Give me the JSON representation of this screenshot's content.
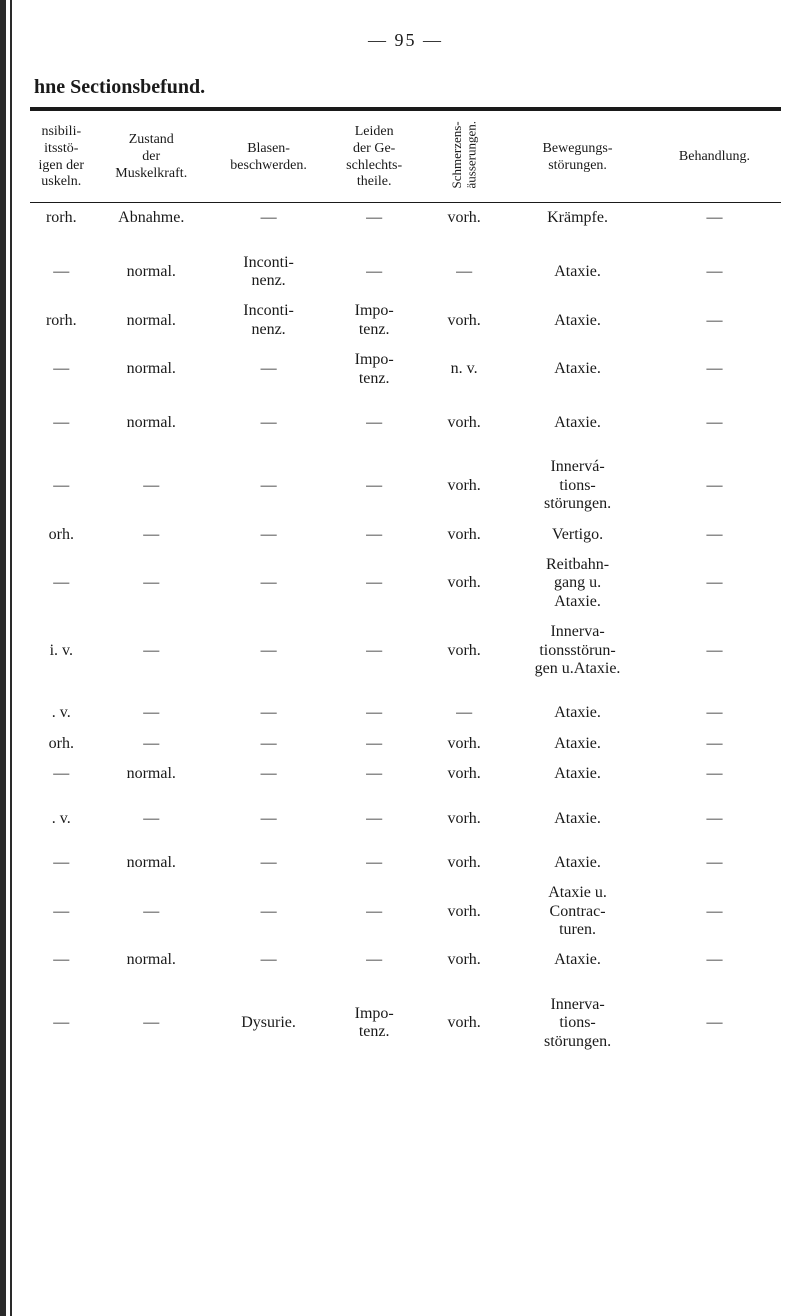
{
  "page_number": "— 95 —",
  "section_title": "hne Sectionsbefund.",
  "headers": {
    "col1": "nsibili-\nitsstö-\nigen der\nuskeln.",
    "col2": "Zustand\nder\nMuskelkraft.",
    "col3": "Blasen-\nbeschwerden.",
    "col4": "Leiden\nder Ge-\nschlechts-\ntheile.",
    "col5": "Schmerzens-\näusserungen.",
    "col6": "Bewegungs-\nstörungen.",
    "col7": "Behandlung."
  },
  "rows": [
    {
      "c1": "rorh.",
      "c2": "Abnahme.",
      "c3": "—",
      "c4": "—",
      "c5": "vorh.",
      "c6": "Krämpfe.",
      "c7": "—"
    },
    {
      "spacer": true
    },
    {
      "c1": "—",
      "c2": "normal.",
      "c3": "Inconti-\nnenz.",
      "c4": "—",
      "c5": "—",
      "c6": "Ataxie.",
      "c7": "—"
    },
    {
      "c1": "rorh.",
      "c2": "normal.",
      "c3": "Inconti-\nnenz.",
      "c4": "Impo-\ntenz.",
      "c5": "vorh.",
      "c6": "Ataxie.",
      "c7": "—"
    },
    {
      "c1": "—",
      "c2": "normal.",
      "c3": "—",
      "c4": "Impo-\ntenz.",
      "c5": "n. v.",
      "c6": "Ataxie.",
      "c7": "—"
    },
    {
      "spacer": true
    },
    {
      "c1": "—",
      "c2": "normal.",
      "c3": "—",
      "c4": "—",
      "c5": "vorh.",
      "c6": "Ataxie.",
      "c7": "—"
    },
    {
      "spacer": true
    },
    {
      "c1": "—",
      "c2": "—",
      "c3": "—",
      "c4": "—",
      "c5": "vorh.",
      "c6": "Innervá-\ntions-\nstörungen.",
      "c7": "—"
    },
    {
      "c1": "orh.",
      "c2": "—",
      "c3": "—",
      "c4": "—",
      "c5": "vorh.",
      "c6": "Vertigo.",
      "c7": "—"
    },
    {
      "c1": "—",
      "c2": "—",
      "c3": "—",
      "c4": "—",
      "c5": "vorh.",
      "c6": "Reitbahn-\ngang u.\nAtaxie.",
      "c7": "—"
    },
    {
      "c1": "i. v.",
      "c2": "—",
      "c3": "—",
      "c4": "—",
      "c5": "vorh.",
      "c6": "Innerva-\ntionsstörun-\ngen u.Ataxie.",
      "c7": "—"
    },
    {
      "spacer": true
    },
    {
      "c1": ". v.",
      "c2": "—",
      "c3": "—",
      "c4": "—",
      "c5": "—",
      "c6": "Ataxie.",
      "c7": "—"
    },
    {
      "c1": "orh.",
      "c2": "—",
      "c3": "—",
      "c4": "—",
      "c5": "vorh.",
      "c6": "Ataxie.",
      "c7": "—"
    },
    {
      "c1": "—",
      "c2": "normal.",
      "c3": "—",
      "c4": "—",
      "c5": "vorh.",
      "c6": "Ataxie.",
      "c7": "—"
    },
    {
      "spacer": true
    },
    {
      "c1": ". v.",
      "c2": "—",
      "c3": "—",
      "c4": "—",
      "c5": "vorh.",
      "c6": "Ataxie.",
      "c7": "—"
    },
    {
      "spacer": true
    },
    {
      "c1": "—",
      "c2": "normal.",
      "c3": "—",
      "c4": "—",
      "c5": "vorh.",
      "c6": "Ataxie.",
      "c7": "—"
    },
    {
      "c1": "—",
      "c2": "—",
      "c3": "—",
      "c4": "—",
      "c5": "vorh.",
      "c6": "Ataxie u.\nContrac-\nturen.",
      "c7": "—"
    },
    {
      "c1": "—",
      "c2": "normal.",
      "c3": "—",
      "c4": "—",
      "c5": "vorh.",
      "c6": "Ataxie.",
      "c7": "—"
    },
    {
      "spacer": true
    },
    {
      "c1": "—",
      "c2": "—",
      "c3": "Dysurie.",
      "c4": "Impo-\ntenz.",
      "c5": "vorh.",
      "c6": "Innerva-\ntions-\nstörungen.",
      "c7": "—"
    }
  ]
}
